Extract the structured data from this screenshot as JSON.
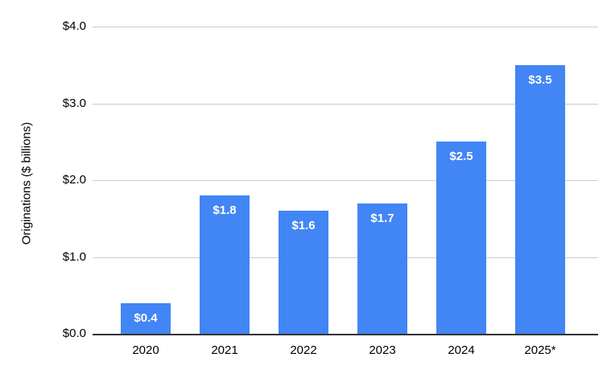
{
  "chart_data": {
    "type": "bar",
    "title": "",
    "categories": [
      "2020",
      "2021",
      "2022",
      "2023",
      "2024",
      "2025*"
    ],
    "values": [
      0.4,
      1.8,
      1.6,
      1.7,
      2.5,
      3.5
    ],
    "value_labels": [
      "$0.4",
      "$1.8",
      "$1.6",
      "$1.7",
      "$2.5",
      "$3.5"
    ],
    "xlabel": "",
    "ylabel": "Originations ($ billions)",
    "ylim": [
      0,
      4
    ],
    "ytick_values": [
      0,
      1,
      2,
      3,
      4
    ],
    "ytick_labels": [
      "$0.0",
      "$1.0",
      "$2.0",
      "$3.0",
      "$4.0"
    ],
    "grid": true,
    "legend": "none",
    "colors": {
      "bar": "#4285f4",
      "bar_label_text": "#ffffff",
      "gridline": "#cccccc",
      "axis_line": "#333333",
      "tick_text": "#000000"
    }
  }
}
